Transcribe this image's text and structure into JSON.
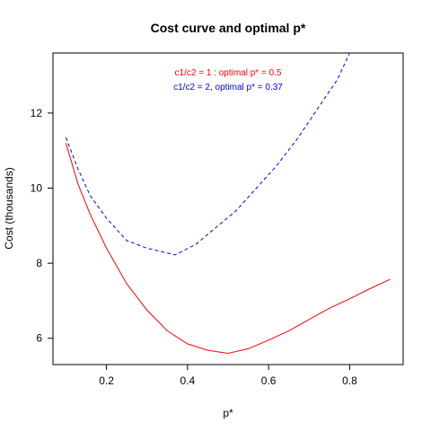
{
  "chart_data": {
    "type": "line",
    "title": "Cost curve and optimal p*",
    "xlabel": "p*",
    "ylabel": "Cost (thousands)",
    "xlim": [
      0.068,
      0.932
    ],
    "ylim": [
      5.3,
      13.6
    ],
    "x_ticks": [
      0.2,
      0.4,
      0.6,
      0.8
    ],
    "x_tick_labels": [
      "0.2",
      "0.4",
      "0.6",
      "0.8"
    ],
    "y_ticks": [
      6,
      8,
      10,
      12
    ],
    "y_tick_labels": [
      "6",
      "8",
      "10",
      "12"
    ],
    "grid": false,
    "legend_position": "top-center",
    "series": [
      {
        "name": "c1/c2 = 1 : optimal p* = 0.5",
        "color": "#ff0000",
        "line_style": "solid",
        "x": [
          0.1,
          0.13,
          0.16,
          0.2,
          0.25,
          0.3,
          0.35,
          0.4,
          0.45,
          0.5,
          0.55,
          0.6,
          0.65,
          0.7,
          0.75,
          0.8,
          0.85,
          0.9
        ],
        "y": [
          11.2,
          10.1,
          9.3,
          8.4,
          7.45,
          6.75,
          6.2,
          5.85,
          5.68,
          5.6,
          5.72,
          5.95,
          6.2,
          6.5,
          6.8,
          7.05,
          7.32,
          7.57
        ]
      },
      {
        "name": "c1/c2 = 2, optimal p* = 0.37",
        "color": "#0000ff",
        "line_style": "dashed",
        "x": [
          0.1,
          0.13,
          0.16,
          0.2,
          0.25,
          0.3,
          0.37,
          0.42,
          0.47,
          0.52,
          0.57,
          0.62,
          0.67,
          0.72,
          0.77,
          0.8
        ],
        "y": [
          11.35,
          10.5,
          9.8,
          9.2,
          8.6,
          8.4,
          8.22,
          8.5,
          8.95,
          9.4,
          10.0,
          10.6,
          11.3,
          12.1,
          12.9,
          13.6
        ]
      }
    ]
  }
}
